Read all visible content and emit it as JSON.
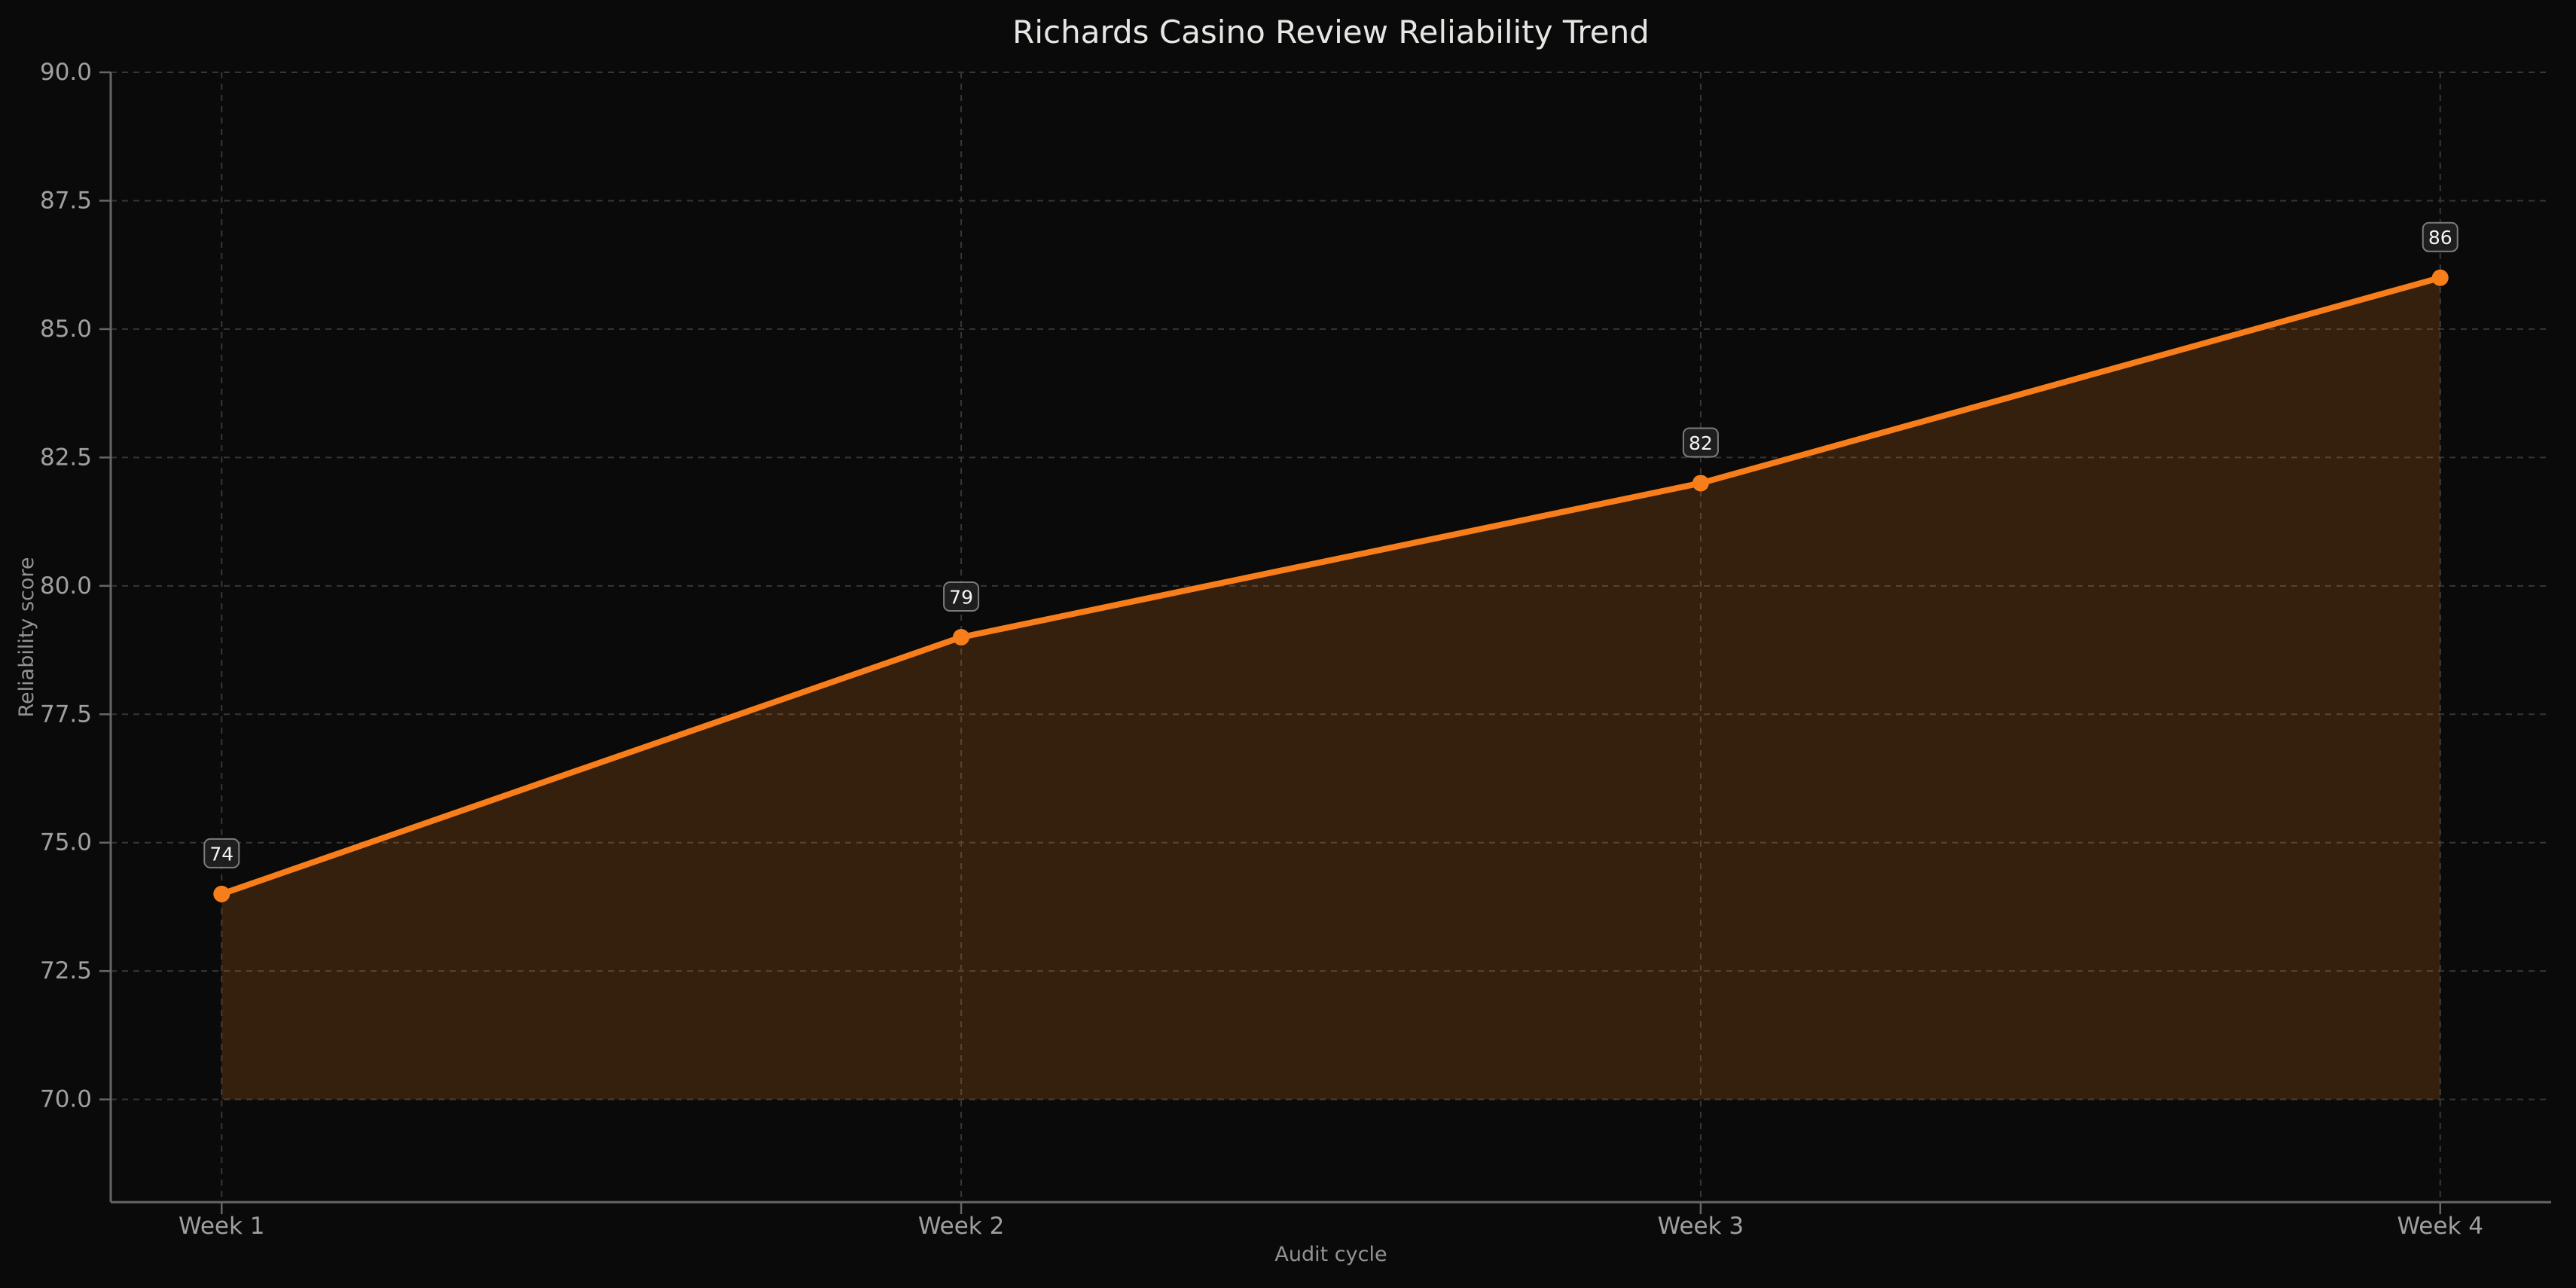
{
  "figure": {
    "background": "#0a0a0a"
  },
  "chart_data": {
    "type": "line",
    "title": "Richards Casino Review Reliability Trend",
    "xlabel": "Audit cycle",
    "ylabel": "Reliability score",
    "categories": [
      "Week 1",
      "Week 2",
      "Week 3",
      "Week 4"
    ],
    "series": [
      {
        "name": "Reliability score",
        "values": [
          74,
          79,
          82,
          86
        ]
      }
    ],
    "point_labels": [
      "74",
      "79",
      "82",
      "86"
    ],
    "ylim": [
      68,
      90
    ],
    "ytick_labels": [
      "70.0",
      "72.5",
      "75.0",
      "77.5",
      "80.0",
      "82.5",
      "85.0",
      "87.5",
      "90.0"
    ],
    "fill_baseline": 70,
    "grid": "dashed-both-axes",
    "legend": "none",
    "colors": {
      "line": "#f87e1b",
      "marker": "#f87e1b",
      "area_fill": "rgba(249,126,27,0.18)",
      "grid": "#363636",
      "spine": "#666666",
      "tick_label": "#a0a0a0",
      "axis_label": "#939393",
      "title": "#e8e6e3",
      "annotation_text": "#f5f5f5",
      "annotation_bg": "rgba(32,32,32,0.9)",
      "annotation_border": "#7c7c7c",
      "background": "#0a0a0a"
    }
  }
}
